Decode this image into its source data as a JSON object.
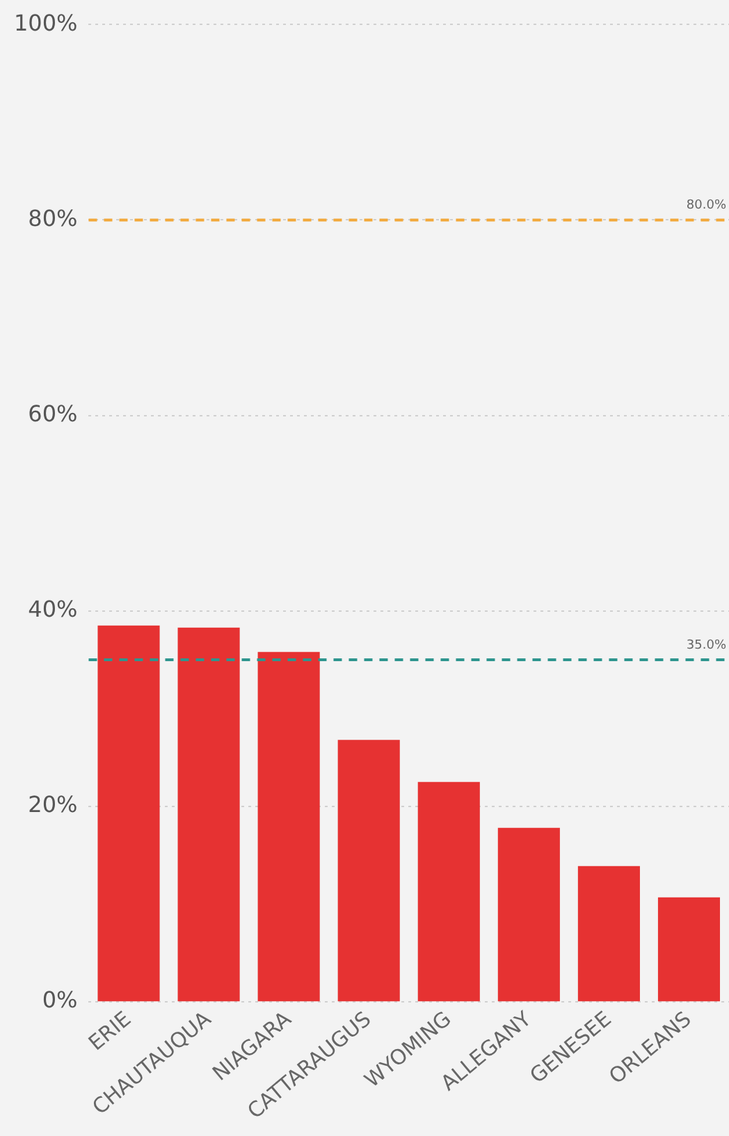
{
  "chart_data": {
    "type": "bar",
    "categories": [
      "ERIE",
      "CHAUTAUQUA",
      "NIAGARA",
      "CATTARAUGUS",
      "WYOMING",
      "ALLEGANY",
      "GENESEE",
      "ORLEANS"
    ],
    "values": [
      38.5,
      38.3,
      35.8,
      26.8,
      22.5,
      17.8,
      13.9,
      10.7
    ],
    "color": "#e63232",
    "ylim": [
      0,
      100
    ],
    "yticks": [
      {
        "value": 0,
        "label": "0%"
      },
      {
        "value": 20,
        "label": "20%"
      },
      {
        "value": 40,
        "label": "40%"
      },
      {
        "value": 60,
        "label": "60%"
      },
      {
        "value": 80,
        "label": "80%"
      },
      {
        "value": 100,
        "label": "100%"
      }
    ],
    "grid": "y",
    "ref_lines": [
      {
        "axis": "y",
        "value": 80,
        "label": "80.0%",
        "color": "#f2a83a",
        "line_style": "dashed"
      },
      {
        "axis": "y",
        "value": 35,
        "label": "35.0%",
        "color": "#2e958e",
        "line_style": "dashed"
      }
    ]
  }
}
